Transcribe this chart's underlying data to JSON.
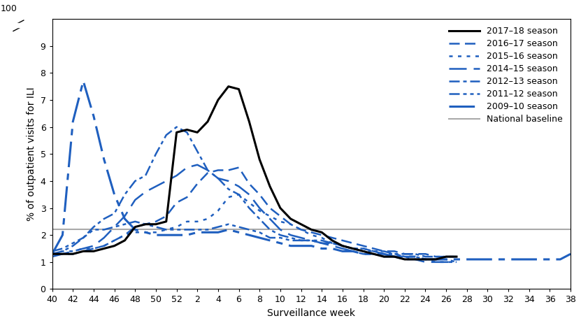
{
  "title": "",
  "ylabel": "% of outpatient visits for ILI",
  "xlabel": "Surveillance week",
  "national_baseline": 2.2,
  "weeks": [
    40,
    41,
    42,
    43,
    44,
    45,
    46,
    47,
    48,
    49,
    50,
    51,
    52,
    1,
    2,
    3,
    4,
    5,
    6,
    7,
    8,
    9,
    10,
    11,
    12,
    13,
    14,
    15,
    16,
    17,
    18,
    19,
    20,
    21,
    22,
    23,
    24,
    25,
    26,
    27,
    28,
    29,
    30,
    31,
    32,
    33,
    34,
    35,
    36,
    37,
    38
  ],
  "tick_weeks_display": [
    40,
    42,
    44,
    46,
    48,
    50,
    52,
    2,
    4,
    6,
    8,
    10,
    12,
    14,
    16,
    18,
    20,
    22,
    24,
    26,
    28,
    30,
    32,
    34,
    36,
    38
  ],
  "season_2017_18": {
    "label": "2017–18 season",
    "color": "#000000",
    "linewidth": 2.2,
    "linestyle": "solid",
    "values": [
      1.3,
      1.3,
      1.3,
      1.4,
      1.4,
      1.5,
      1.6,
      1.8,
      2.3,
      2.4,
      2.4,
      2.5,
      5.8,
      5.9,
      5.8,
      6.2,
      7.0,
      7.5,
      7.4,
      6.2,
      4.8,
      3.8,
      3.0,
      2.6,
      2.4,
      2.2,
      2.1,
      1.8,
      1.6,
      1.5,
      1.4,
      1.3,
      1.2,
      1.2,
      1.1,
      1.1,
      1.1,
      1.1,
      1.2,
      1.2,
      null,
      null,
      null,
      null,
      null,
      null,
      null,
      null,
      null,
      null,
      null
    ]
  },
  "season_2016_17": {
    "label": "2016–17 season",
    "color": "#1F5FBF",
    "linewidth": 1.8,
    "linestyle": "dashed",
    "dashes": [
      6,
      3
    ],
    "values": [
      1.3,
      1.3,
      1.3,
      1.4,
      1.5,
      1.6,
      1.8,
      2.0,
      2.3,
      2.4,
      2.5,
      2.7,
      3.2,
      3.4,
      3.9,
      4.3,
      4.4,
      4.4,
      4.5,
      3.9,
      3.5,
      3.0,
      2.7,
      2.4,
      2.2,
      2.1,
      2.0,
      1.9,
      1.8,
      1.7,
      1.6,
      1.5,
      1.4,
      1.4,
      1.3,
      1.3,
      1.3,
      1.2,
      1.2,
      1.2,
      null,
      null,
      null,
      null,
      null,
      null,
      null,
      null,
      null,
      null,
      null
    ]
  },
  "season_2015_16": {
    "label": "2015–16 season",
    "color": "#1F5FBF",
    "linewidth": 1.8,
    "linestyle": "dotted",
    "dashes": [
      2,
      3
    ],
    "values": [
      1.3,
      1.4,
      1.4,
      1.5,
      1.5,
      1.6,
      1.8,
      2.0,
      2.1,
      2.1,
      2.1,
      2.2,
      2.3,
      2.5,
      2.5,
      2.6,
      2.9,
      3.4,
      3.5,
      3.2,
      2.9,
      2.7,
      2.5,
      2.4,
      2.2,
      2.0,
      1.9,
      1.7,
      1.6,
      1.5,
      1.5,
      1.4,
      1.3,
      1.3,
      1.2,
      1.1,
      1.1,
      1.0,
      1.0,
      1.0,
      null,
      null,
      null,
      null,
      null,
      null,
      null,
      null,
      null,
      null,
      null
    ]
  },
  "season_2014_15": {
    "label": "2014–15 season",
    "color": "#1F5FBF",
    "linewidth": 1.8,
    "linestyle": "dashed",
    "dashes": [
      10,
      4
    ],
    "values": [
      1.2,
      1.3,
      1.4,
      1.5,
      1.6,
      1.9,
      2.3,
      2.7,
      3.3,
      3.6,
      3.8,
      4.0,
      4.2,
      4.5,
      4.6,
      4.4,
      4.1,
      4.0,
      3.8,
      3.5,
      3.0,
      2.6,
      2.2,
      2.0,
      1.9,
      1.8,
      1.7,
      1.6,
      1.5,
      1.4,
      1.3,
      1.3,
      1.2,
      1.2,
      1.1,
      1.1,
      1.0,
      1.0,
      1.0,
      1.0,
      null,
      null,
      null,
      null,
      null,
      null,
      null,
      null,
      null,
      null,
      null
    ]
  },
  "season_2012_13": {
    "label": "2012–13 season",
    "color": "#1F5FBF",
    "linewidth": 1.8,
    "linestyle": "dashdot",
    "dashes": [
      6,
      2,
      2,
      2
    ],
    "values": [
      1.3,
      1.4,
      1.6,
      1.9,
      2.3,
      2.6,
      2.8,
      3.5,
      4.0,
      4.2,
      5.0,
      5.7,
      6.0,
      5.8,
      5.1,
      4.4,
      4.1,
      3.7,
      3.5,
      3.0,
      2.6,
      2.2,
      2.0,
      1.9,
      1.8,
      1.8,
      1.7,
      1.7,
      1.6,
      1.5,
      1.5,
      1.4,
      1.4,
      1.3,
      1.3,
      1.3,
      1.2,
      1.2,
      1.2,
      1.2,
      null,
      null,
      null,
      null,
      null,
      null,
      null,
      null,
      null,
      null,
      null
    ]
  },
  "season_2011_12": {
    "label": "2011–12 season",
    "color": "#1F5FBF",
    "linewidth": 1.8,
    "linestyle": "dashdotdot",
    "dashes": [
      6,
      2,
      2,
      2,
      2,
      2
    ],
    "values": [
      1.4,
      1.5,
      1.7,
      1.9,
      2.2,
      2.2,
      2.3,
      2.4,
      2.5,
      2.4,
      2.3,
      2.2,
      2.2,
      2.2,
      2.2,
      2.2,
      2.3,
      2.4,
      2.3,
      2.2,
      2.1,
      1.9,
      1.9,
      1.8,
      1.8,
      1.8,
      1.8,
      1.7,
      1.6,
      1.5,
      1.4,
      1.4,
      1.3,
      1.3,
      1.2,
      1.2,
      1.1,
      1.1,
      1.1,
      1.0,
      null,
      null,
      null,
      null,
      null,
      null,
      null,
      null,
      null,
      null,
      null
    ]
  },
  "season_2009_10": {
    "label": "2009–10 season",
    "color": "#1F5FBF",
    "linewidth": 2.2,
    "linestyle": "longdashdot",
    "dashes": [
      12,
      3,
      3,
      3
    ],
    "values": [
      1.3,
      2.0,
      6.2,
      7.7,
      6.4,
      4.8,
      3.5,
      2.6,
      2.2,
      2.1,
      2.0,
      2.0,
      2.0,
      2.0,
      2.1,
      2.1,
      2.1,
      2.2,
      2.1,
      2.0,
      1.9,
      1.8,
      1.7,
      1.6,
      1.6,
      1.6,
      1.5,
      1.5,
      1.4,
      1.4,
      1.3,
      1.3,
      1.3,
      1.2,
      1.2,
      1.2,
      1.1,
      1.1,
      1.1,
      1.1,
      1.1,
      1.1,
      1.1,
      1.1,
      1.1,
      1.1,
      1.1,
      1.1,
      1.1,
      1.1,
      1.3
    ]
  },
  "background_color": "#ffffff",
  "axis_color": "#000000",
  "baseline_color": "#aaaaaa",
  "blue_color": "#1F5FBF",
  "tick_labelsize": 9,
  "axis_labelsize": 10,
  "legend_fontsize": 9
}
